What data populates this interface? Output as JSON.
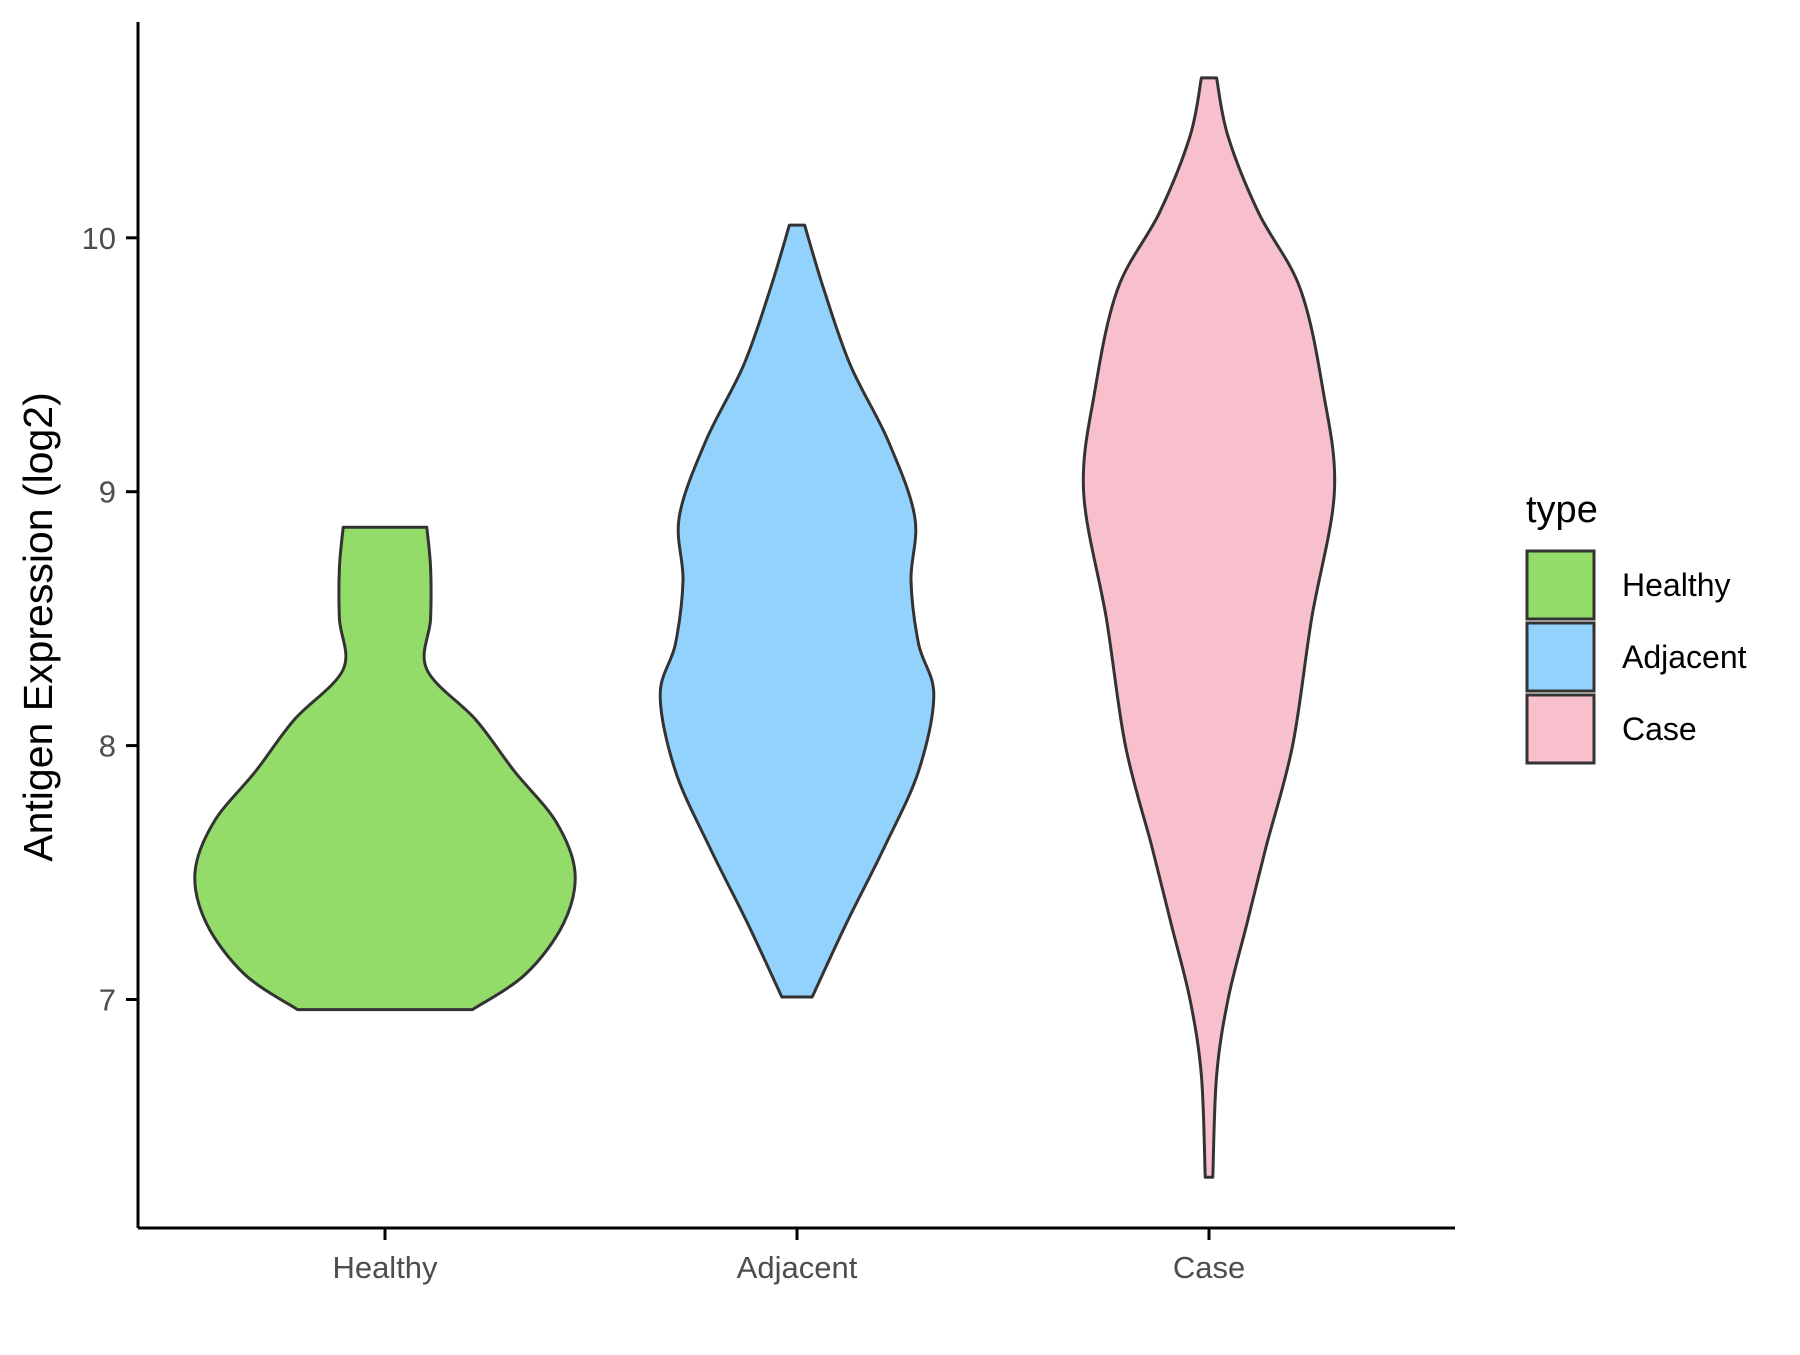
{
  "chart_data": {
    "type": "violin",
    "xlabel": "",
    "ylabel": "Antigen Expression (log2)",
    "categories": [
      "Healthy",
      "Adjacent",
      "Case"
    ],
    "yticks": [
      7,
      8,
      9,
      10
    ],
    "ylim": [
      6.1,
      10.85
    ],
    "legend": {
      "title": "type",
      "placement": "right",
      "entries": [
        "Healthy",
        "Adjacent",
        "Case"
      ]
    },
    "colors": {
      "Healthy": "#93dc6a",
      "Adjacent": "#93d2fc",
      "Case": "#f8c0cc",
      "outline": "#333333",
      "axis": "#000000"
    },
    "series": [
      {
        "name": "Healthy",
        "min": 6.96,
        "max": 8.86,
        "profile": [
          [
            6.96,
            0.23
          ],
          [
            7.1,
            0.37
          ],
          [
            7.3,
            0.47
          ],
          [
            7.5,
            0.5
          ],
          [
            7.7,
            0.45
          ],
          [
            7.9,
            0.34
          ],
          [
            8.1,
            0.24
          ],
          [
            8.3,
            0.11
          ],
          [
            8.5,
            0.12
          ],
          [
            8.7,
            0.12
          ],
          [
            8.86,
            0.11
          ]
        ]
      },
      {
        "name": "Adjacent",
        "min": 7.01,
        "max": 10.05,
        "profile": [
          [
            7.01,
            0.04
          ],
          [
            7.3,
            0.13
          ],
          [
            7.6,
            0.23
          ],
          [
            7.9,
            0.32
          ],
          [
            8.2,
            0.36
          ],
          [
            8.4,
            0.32
          ],
          [
            8.65,
            0.3
          ],
          [
            8.9,
            0.31
          ],
          [
            9.2,
            0.24
          ],
          [
            9.5,
            0.14
          ],
          [
            9.8,
            0.07
          ],
          [
            10.05,
            0.02
          ]
        ]
      },
      {
        "name": "Case",
        "min": 6.3,
        "max": 10.63,
        "profile": [
          [
            6.3,
            0.01
          ],
          [
            6.7,
            0.02
          ],
          [
            7.0,
            0.05
          ],
          [
            7.3,
            0.1
          ],
          [
            7.6,
            0.15
          ],
          [
            8.0,
            0.22
          ],
          [
            8.5,
            0.27
          ],
          [
            9.0,
            0.33
          ],
          [
            9.4,
            0.3
          ],
          [
            9.8,
            0.24
          ],
          [
            10.1,
            0.13
          ],
          [
            10.4,
            0.05
          ],
          [
            10.63,
            0.02
          ]
        ]
      }
    ]
  }
}
